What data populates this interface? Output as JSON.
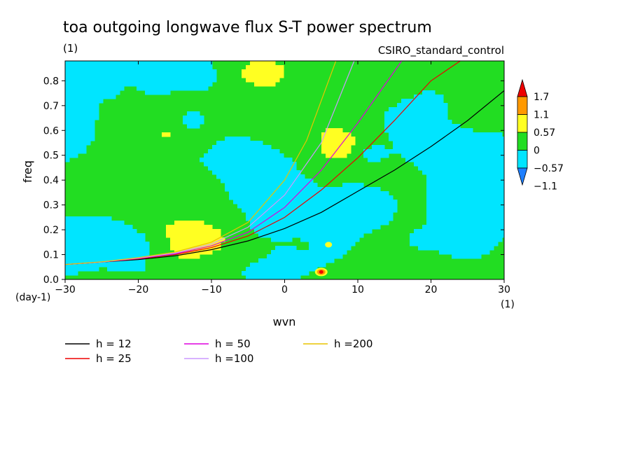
{
  "chart_data": {
    "type": "heatmap",
    "title": "toa outgoing longwave flux S-T power spectrum",
    "subtitle_left": "(1)",
    "subtitle_right": "CSIRO_standard_control",
    "xlabel": "wvn",
    "ylabel": "freq",
    "x_unit": "(1)",
    "y_unit": "(day-1)",
    "xlim": [
      -30,
      30
    ],
    "ylim": [
      0,
      0.88
    ],
    "xticks": [
      -30,
      -20,
      -10,
      0,
      10,
      20,
      30
    ],
    "xtick_labels": [
      "−30",
      "−20",
      "−10",
      "0",
      "10",
      "20",
      "30"
    ],
    "yticks": [
      0.0,
      0.1,
      0.2,
      0.3,
      0.4,
      0.5,
      0.6,
      0.7,
      0.8
    ],
    "ytick_labels": [
      "0.0",
      "0.1",
      "0.2",
      "0.3",
      "0.4",
      "0.5",
      "0.6",
      "0.7",
      "0.8"
    ],
    "colorbar": {
      "levels": [
        -1.1,
        -0.57,
        0,
        0.57,
        1.1,
        1.7
      ],
      "labels": [
        "−1.1",
        "−0.57",
        "0",
        "0.57",
        "1.1",
        "1.7"
      ],
      "colors": [
        "#1e7fff",
        "#00e5ff",
        "#22dd22",
        "#ffff22",
        "#ff9900",
        "#ee0000"
      ]
    },
    "field": {
      "dominant_bands": [
        "-0.57 to 0",
        "0 to 0.57"
      ],
      "hotspots": [
        {
          "wvn": 5,
          "freq": 0.03,
          "value": 1.7
        },
        {
          "wvn": 6,
          "freq": 0.14,
          "value": 0.8
        }
      ]
    },
    "series": [
      {
        "name": "h = 12",
        "color": "#000000",
        "x": [
          -30,
          -25,
          -20,
          -15,
          -10,
          -5,
          0,
          5,
          10,
          15,
          20,
          25,
          30
        ],
        "y": [
          0.06,
          0.07,
          0.08,
          0.095,
          0.12,
          0.155,
          0.205,
          0.27,
          0.355,
          0.44,
          0.535,
          0.64,
          0.76
        ]
      },
      {
        "name": "h = 25",
        "color": "#ee0000",
        "x": [
          -30,
          -25,
          -20,
          -15,
          -10,
          -5,
          0,
          5,
          10,
          15,
          20,
          24
        ],
        "y": [
          0.06,
          0.07,
          0.083,
          0.1,
          0.128,
          0.175,
          0.25,
          0.36,
          0.49,
          0.64,
          0.8,
          0.88
        ]
      },
      {
        "name": "h = 50",
        "color": "#dd00dd",
        "x": [
          -30,
          -25,
          -20,
          -15,
          -10,
          -5,
          0,
          5,
          10,
          16
        ],
        "y": [
          0.06,
          0.07,
          0.085,
          0.103,
          0.135,
          0.19,
          0.29,
          0.44,
          0.63,
          0.88
        ]
      },
      {
        "name": "h =100",
        "color": "#cc99ff",
        "x": [
          -30,
          -25,
          -20,
          -15,
          -10,
          -5,
          0,
          5,
          9.5
        ],
        "y": [
          0.06,
          0.07,
          0.086,
          0.106,
          0.143,
          0.21,
          0.34,
          0.55,
          0.88
        ]
      },
      {
        "name": "h =200",
        "color": "#e8c400",
        "x": [
          -30,
          -25,
          -20,
          -15,
          -10,
          -5,
          0,
          3,
          7
        ],
        "y": [
          0.06,
          0.071,
          0.088,
          0.11,
          0.15,
          0.23,
          0.4,
          0.56,
          0.88
        ]
      }
    ],
    "legend_position": "bottom-left"
  }
}
